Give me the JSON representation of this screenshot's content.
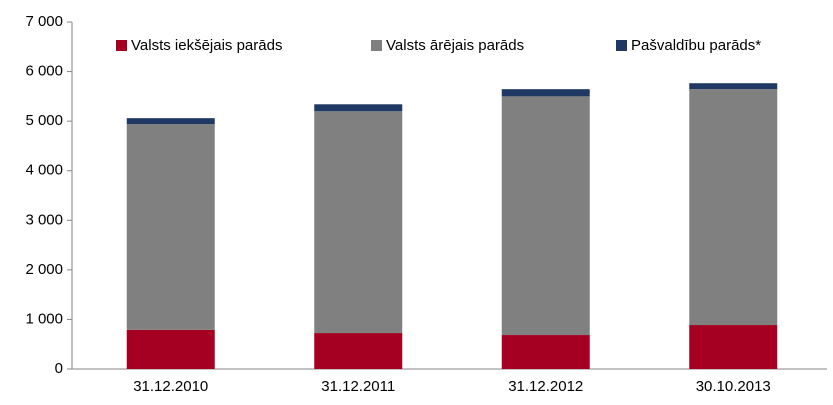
{
  "chart_data": {
    "type": "stacked_bar",
    "categories": [
      "31.12.2010",
      "31.12.2011",
      "31.12.2012",
      "30.10.2013"
    ],
    "series": [
      {
        "name": "Valsts iekšējais parāds",
        "color": "#a50021",
        "values": [
          790,
          725,
          685,
          887
        ]
      },
      {
        "name": "Valsts ārējais parāds",
        "color": "#808080",
        "values": [
          4150,
          4475,
          4815,
          4758
        ]
      },
      {
        "name": "Pašvaldību parāds*",
        "color": "#1f3864",
        "values": [
          120,
          140,
          145,
          120
        ]
      }
    ],
    "ylim": [
      0,
      7000
    ],
    "yticks": [
      0,
      {
        "value": 1000,
        "label": "1 000"
      },
      {
        "value": 2000,
        "label": "2 000"
      },
      {
        "value": 3000,
        "label": "3 000"
      },
      {
        "value": 4000,
        "label": "4 000"
      },
      {
        "value": 5000,
        "label": "5 000"
      },
      {
        "value": 6000,
        "label": "6 000"
      },
      {
        "value": 7000,
        "label": "7 000"
      }
    ],
    "grid": false,
    "legend": "top"
  }
}
